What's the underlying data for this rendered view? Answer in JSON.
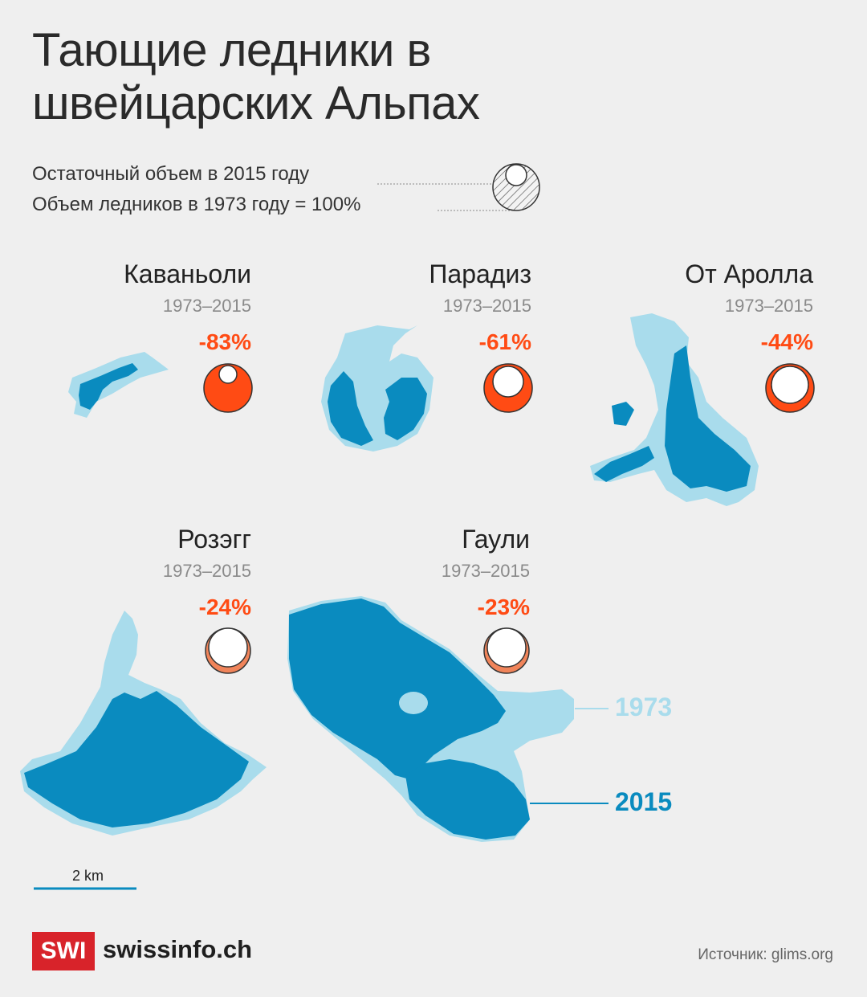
{
  "title": "Тающие ледники в швейцарских Альпах",
  "legend": {
    "remaining_label": "Остаточный объем в 2015 году",
    "baseline_label": "Объем ледников в 1973 году = 100%"
  },
  "glaciers": [
    {
      "name": "Каваньоли",
      "years": "1973–2015",
      "change": "-83%",
      "change_value": -83
    },
    {
      "name": "Парадиз",
      "years": "1973–2015",
      "change": "-61%",
      "change_value": -61
    },
    {
      "name": "От Аролла",
      "years": "1973–2015",
      "change": "-44%",
      "change_value": -44
    },
    {
      "name": "Розэгг",
      "years": "1973–2015",
      "change": "-24%",
      "change_value": -24
    },
    {
      "name": "Гаули",
      "years": "1973–2015",
      "change": "-23%",
      "change_value": -23
    }
  ],
  "map_legend": {
    "year_1973": "1973",
    "year_2015": "2015"
  },
  "scale": {
    "label": "2 km"
  },
  "footer": {
    "logo": "SWI",
    "brand": "swissinfo.ch",
    "source": "Источник: glims.org"
  },
  "colors": {
    "ice_1973": "#a9dcec",
    "ice_2015": "#0a8bbf",
    "accent": "#ff4b14",
    "logo": "#d8232a"
  }
}
